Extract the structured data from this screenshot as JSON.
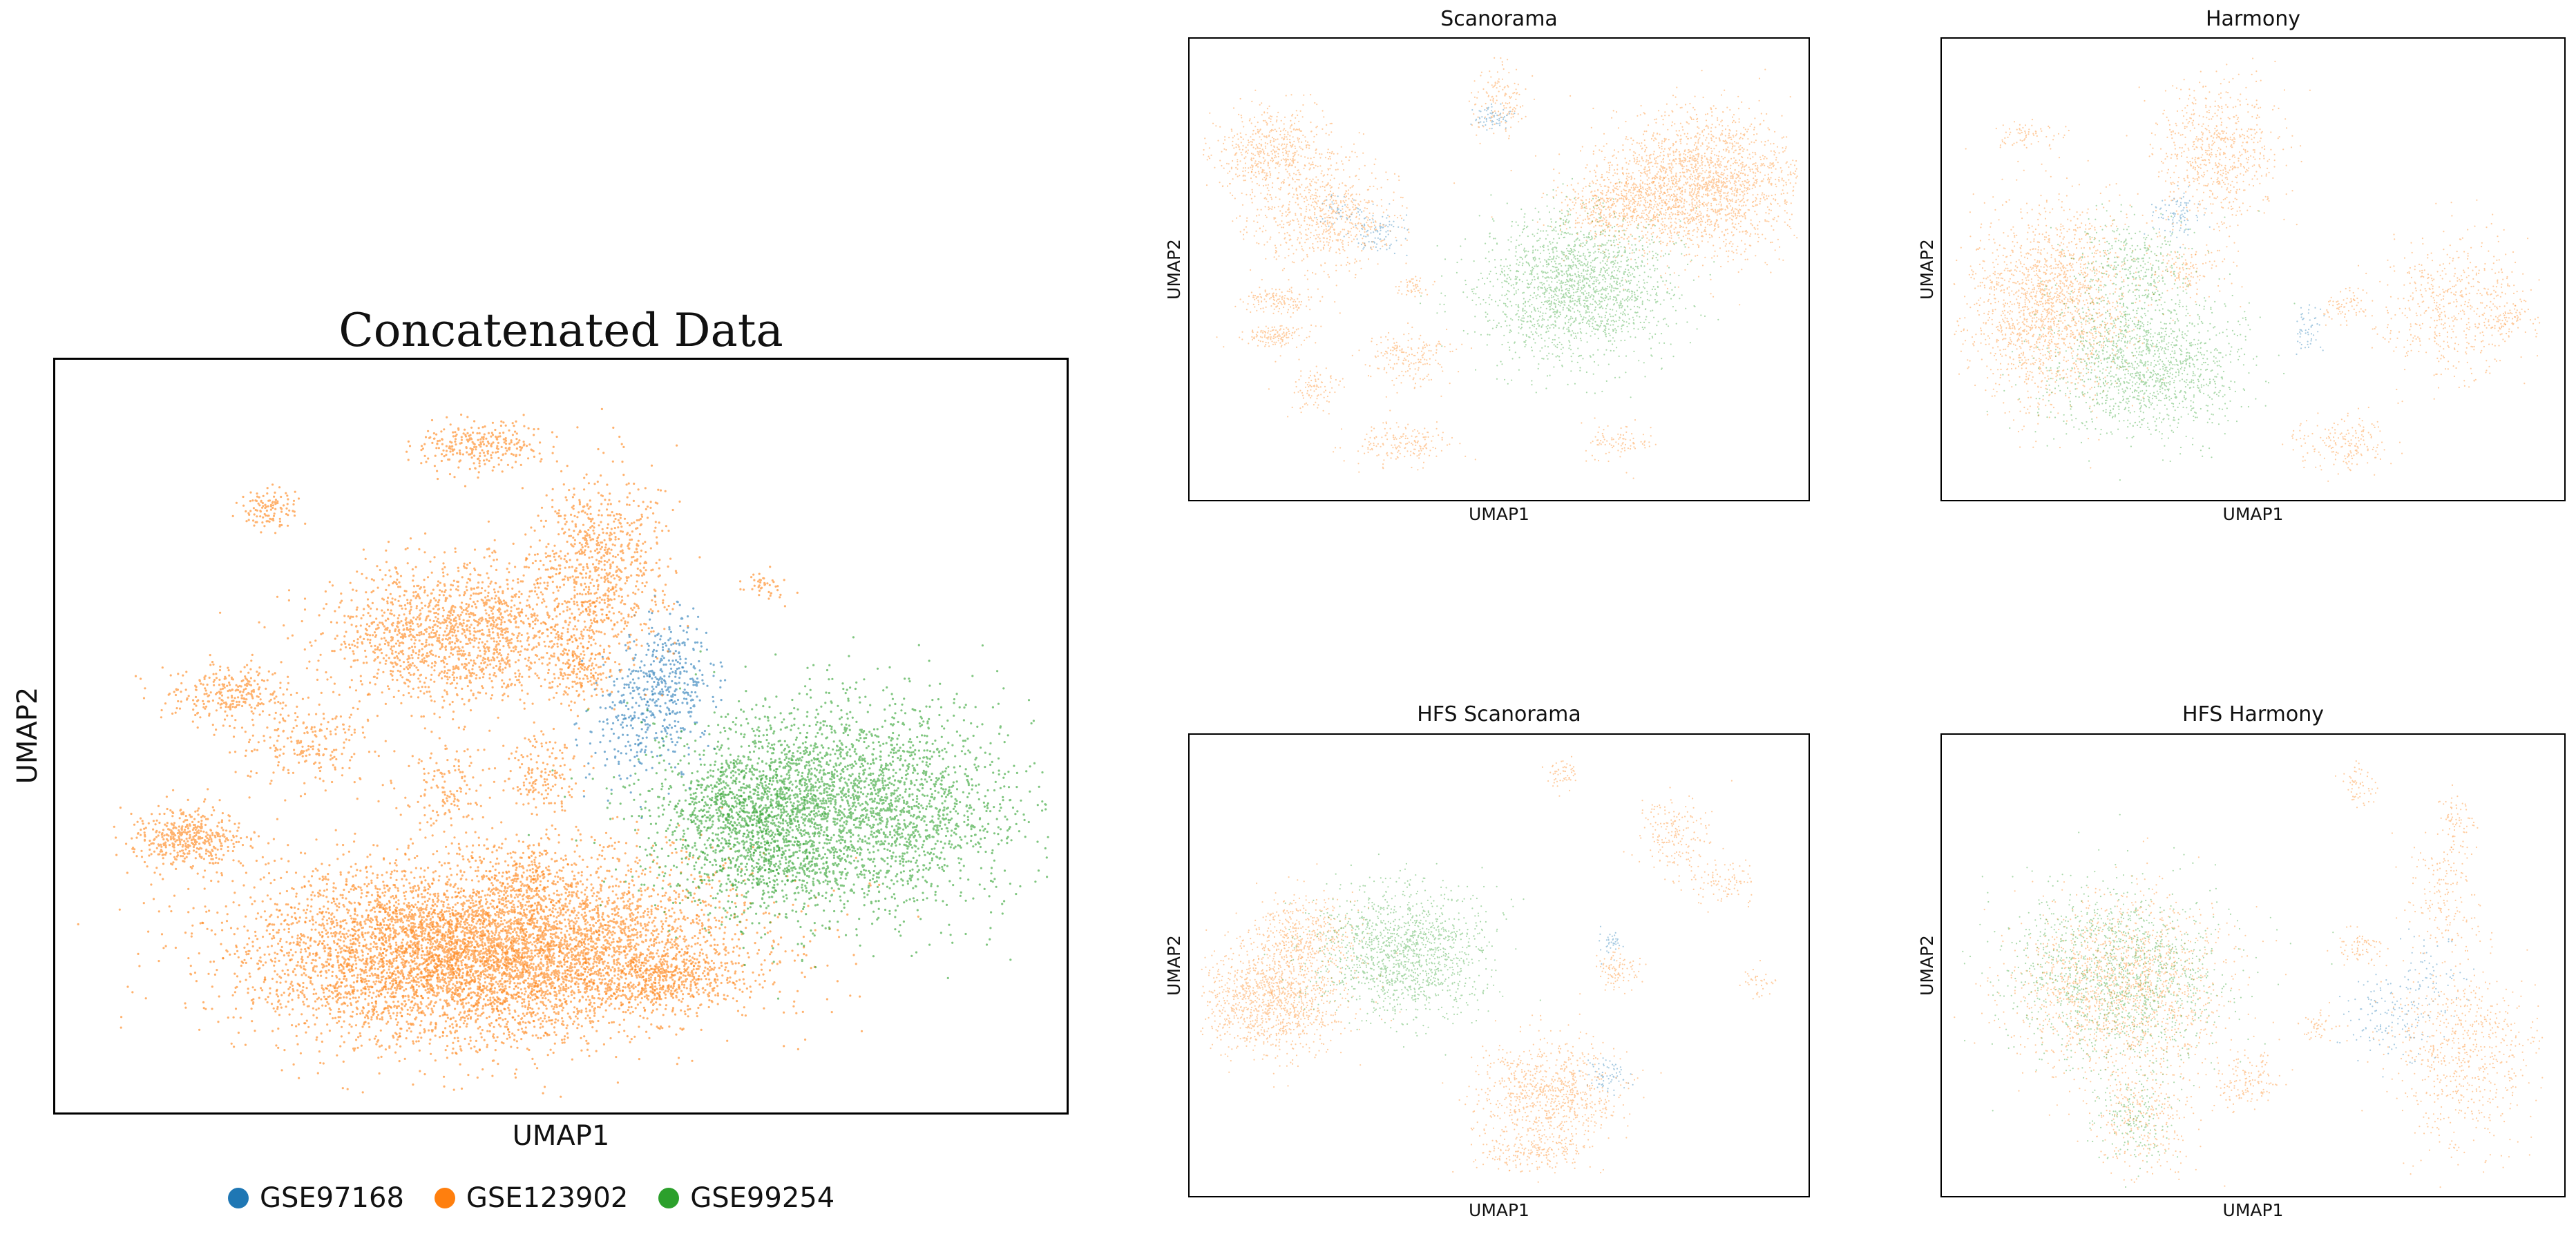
{
  "legend": {
    "entries": [
      {
        "label": "GSE97168",
        "color": "#1f77b4"
      },
      {
        "label": "GSE123902",
        "color": "#ff7f0e"
      },
      {
        "label": "GSE99254",
        "color": "#2ca02c"
      }
    ]
  },
  "chart_data": [
    {
      "type": "scatter",
      "title": "Concatenated Data",
      "xlabel": "UMAP1",
      "ylabel": "UMAP2",
      "grid": false,
      "ticks": false,
      "xlim": [
        0,
        100
      ],
      "ylim": [
        0,
        100
      ],
      "series": [
        {
          "name": "GSE97168",
          "color": "#1f77b4",
          "clusters": [
            {
              "x": 61,
              "y": 57,
              "sx": 2.5,
              "sy": 4.5,
              "n": 700
            },
            {
              "x": 57,
              "y": 52,
              "sx": 2.5,
              "sy": 4.5,
              "n": 300
            }
          ]
        },
        {
          "name": "GSE123902",
          "color": "#ff7f0e",
          "clusters": [
            {
              "x": 45,
              "y": 21,
              "sx": 12,
              "sy": 6,
              "n": 9000
            },
            {
              "x": 36,
              "y": 19,
              "sx": 10,
              "sy": 6,
              "n": 3500
            },
            {
              "x": 61,
              "y": 17,
              "sx": 3.5,
              "sy": 2,
              "n": 700
            },
            {
              "x": 40,
              "y": 64,
              "sx": 7,
              "sy": 5,
              "n": 3000
            },
            {
              "x": 54,
              "y": 74,
              "sx": 3.5,
              "sy": 6,
              "n": 1400
            },
            {
              "x": 12,
              "y": 36,
              "sx": 3,
              "sy": 2,
              "n": 800
            },
            {
              "x": 16,
              "y": 56,
              "sx": 3.5,
              "sy": 2,
              "n": 500
            },
            {
              "x": 24,
              "y": 49,
              "sx": 3.5,
              "sy": 3,
              "n": 400
            },
            {
              "x": 42,
              "y": 90,
              "sx": 3.2,
              "sy": 1.6,
              "n": 500
            },
            {
              "x": 20,
              "y": 81,
              "sx": 1.5,
              "sy": 1.5,
              "n": 200
            },
            {
              "x": 48,
              "y": 45,
              "sx": 2,
              "sy": 3,
              "n": 300
            },
            {
              "x": 38,
              "y": 43,
              "sx": 2,
              "sy": 3,
              "n": 250
            },
            {
              "x": 52,
              "y": 59,
              "sx": 1.5,
              "sy": 2.5,
              "n": 250
            },
            {
              "x": 71,
              "y": 71,
              "sx": 1.2,
              "sy": 1,
              "n": 80
            },
            {
              "x": 46,
              "y": 32,
              "sx": 2,
              "sy": 2,
              "n": 200
            }
          ]
        },
        {
          "name": "GSE99254",
          "color": "#2ca02c",
          "clusters": [
            {
              "x": 78,
              "y": 40,
              "sx": 9,
              "sy": 7,
              "n": 6000
            },
            {
              "x": 69,
              "y": 37,
              "sx": 4,
              "sy": 5,
              "n": 1200
            }
          ]
        }
      ]
    },
    {
      "type": "scatter",
      "title": "Scanorama",
      "xlabel": "UMAP1",
      "ylabel": "UMAP2",
      "grid": false,
      "ticks": false,
      "xlim": [
        0,
        100
      ],
      "ylim": [
        0,
        100
      ],
      "series": [
        {
          "name": "GSE97168",
          "color": "#1f77b4",
          "clusters": [
            {
              "x": 30,
              "y": 58,
              "sx": 2.5,
              "sy": 2.5,
              "n": 200
            },
            {
              "x": 49,
              "y": 84,
              "sx": 1.5,
              "sy": 1.5,
              "n": 150
            },
            {
              "x": 24,
              "y": 63,
              "sx": 2,
              "sy": 2,
              "n": 100
            }
          ]
        },
        {
          "name": "GSE123902",
          "color": "#ff7f0e",
          "clusters": [
            {
              "x": 84,
              "y": 69,
              "sx": 8,
              "sy": 8,
              "n": 4500
            },
            {
              "x": 70,
              "y": 64,
              "sx": 5,
              "sy": 4,
              "n": 1200
            },
            {
              "x": 12,
              "y": 76,
              "sx": 5,
              "sy": 5,
              "n": 1200
            },
            {
              "x": 21,
              "y": 62,
              "sx": 6,
              "sy": 6,
              "n": 1500
            },
            {
              "x": 13,
              "y": 43,
              "sx": 3,
              "sy": 1.5,
              "n": 300
            },
            {
              "x": 13,
              "y": 35,
              "sx": 3,
              "sy": 1.5,
              "n": 300
            },
            {
              "x": 19,
              "y": 23,
              "sx": 2,
              "sy": 2.5,
              "n": 200
            },
            {
              "x": 35,
              "y": 30,
              "sx": 4,
              "sy": 3,
              "n": 400
            },
            {
              "x": 34,
              "y": 11,
              "sx": 4,
              "sy": 2.5,
              "n": 400
            },
            {
              "x": 50,
              "y": 88,
              "sx": 2.5,
              "sy": 4,
              "n": 300
            },
            {
              "x": 70,
              "y": 11,
              "sx": 3,
              "sy": 2,
              "n": 200
            },
            {
              "x": 36,
              "y": 46,
              "sx": 1.5,
              "sy": 1.5,
              "n": 100
            }
          ]
        },
        {
          "name": "GSE99254",
          "color": "#2ca02c",
          "clusters": [
            {
              "x": 63,
              "y": 46,
              "sx": 8,
              "sy": 8,
              "n": 4000
            }
          ]
        }
      ]
    },
    {
      "type": "scatter",
      "title": "Harmony",
      "xlabel": "UMAP1",
      "ylabel": "UMAP2",
      "grid": false,
      "ticks": false,
      "xlim": [
        0,
        100
      ],
      "ylim": [
        0,
        100
      ],
      "series": [
        {
          "name": "GSE97168",
          "color": "#1f77b4",
          "clusters": [
            {
              "x": 37,
              "y": 62,
              "sx": 2,
              "sy": 2.5,
              "n": 200
            },
            {
              "x": 59,
              "y": 36,
              "sx": 1,
              "sy": 3,
              "n": 120
            }
          ]
        },
        {
          "name": "GSE123902",
          "color": "#ff7f0e",
          "clusters": [
            {
              "x": 16,
              "y": 42,
              "sx": 7,
              "sy": 11,
              "n": 4000
            },
            {
              "x": 44,
              "y": 76,
              "sx": 5,
              "sy": 8,
              "n": 1500
            },
            {
              "x": 84,
              "y": 42,
              "sx": 6,
              "sy": 8,
              "n": 1200
            },
            {
              "x": 65,
              "y": 11,
              "sx": 4,
              "sy": 3,
              "n": 400
            },
            {
              "x": 12,
              "y": 80,
              "sx": 3,
              "sy": 1.5,
              "n": 150
            },
            {
              "x": 93,
              "y": 39,
              "sx": 2,
              "sy": 2,
              "n": 150
            },
            {
              "x": 39,
              "y": 50,
              "sx": 3,
              "sy": 3,
              "n": 300
            },
            {
              "x": 65,
              "y": 42,
              "sx": 2,
              "sy": 2,
              "n": 150
            }
          ]
        },
        {
          "name": "GSE99254",
          "color": "#2ca02c",
          "clusters": [
            {
              "x": 32,
              "y": 28,
              "sx": 8,
              "sy": 8,
              "n": 3000
            },
            {
              "x": 30,
              "y": 50,
              "sx": 5,
              "sy": 6,
              "n": 800
            }
          ]
        }
      ]
    },
    {
      "type": "scatter",
      "title": "HFS Scanorama",
      "xlabel": "UMAP1",
      "ylabel": "UMAP2",
      "grid": false,
      "ticks": false,
      "xlim": [
        0,
        100
      ],
      "ylim": [
        0,
        100
      ],
      "series": [
        {
          "name": "GSE97168",
          "color": "#1f77b4",
          "clusters": [
            {
              "x": 68,
              "y": 25,
              "sx": 2,
              "sy": 2,
              "n": 150
            },
            {
              "x": 69,
              "y": 55,
              "sx": 1,
              "sy": 1.5,
              "n": 80
            }
          ]
        },
        {
          "name": "GSE123902",
          "color": "#ff7f0e",
          "clusters": [
            {
              "x": 12,
              "y": 42,
              "sx": 6,
              "sy": 6,
              "n": 2500
            },
            {
              "x": 17,
              "y": 56,
              "sx": 5,
              "sy": 5,
              "n": 1000
            },
            {
              "x": 58,
              "y": 21,
              "sx": 6,
              "sy": 6,
              "n": 1800
            },
            {
              "x": 55,
              "y": 8,
              "sx": 5,
              "sy": 2,
              "n": 400
            },
            {
              "x": 79,
              "y": 80,
              "sx": 3,
              "sy": 4,
              "n": 400
            },
            {
              "x": 87,
              "y": 69,
              "sx": 3,
              "sy": 3,
              "n": 200
            },
            {
              "x": 61,
              "y": 93,
              "sx": 1.5,
              "sy": 1.5,
              "n": 120
            },
            {
              "x": 70,
              "y": 49,
              "sx": 2,
              "sy": 2,
              "n": 200
            },
            {
              "x": 93,
              "y": 46,
              "sx": 1.5,
              "sy": 1.5,
              "n": 80
            }
          ]
        },
        {
          "name": "GSE99254",
          "color": "#2ca02c",
          "clusters": [
            {
              "x": 34,
              "y": 53,
              "sx": 7,
              "sy": 7,
              "n": 3000
            }
          ]
        }
      ]
    },
    {
      "type": "scatter",
      "title": "HFS Harmony",
      "xlabel": "UMAP1",
      "ylabel": "UMAP2",
      "grid": false,
      "ticks": false,
      "xlim": [
        0,
        100
      ],
      "ylim": [
        0,
        100
      ],
      "series": [
        {
          "name": "GSE97168",
          "color": "#1f77b4",
          "clusters": [
            {
              "x": 73,
              "y": 38,
              "sx": 4,
              "sy": 5,
              "n": 300
            },
            {
              "x": 80,
              "y": 48,
              "sx": 3,
              "sy": 4,
              "n": 150
            }
          ]
        },
        {
          "name": "GSE123902",
          "color": "#ff7f0e",
          "clusters": [
            {
              "x": 28,
              "y": 45,
              "sx": 9,
              "sy": 10,
              "n": 3500
            },
            {
              "x": 31,
              "y": 15,
              "sx": 4,
              "sy": 6,
              "n": 600
            },
            {
              "x": 85,
              "y": 30,
              "sx": 6,
              "sy": 10,
              "n": 1500
            },
            {
              "x": 49,
              "y": 24,
              "sx": 2.5,
              "sy": 3,
              "n": 300
            },
            {
              "x": 82,
              "y": 65,
              "sx": 3,
              "sy": 8,
              "n": 400
            },
            {
              "x": 68,
              "y": 54,
              "sx": 2,
              "sy": 2,
              "n": 150
            },
            {
              "x": 84,
              "y": 82,
              "sx": 1.5,
              "sy": 3,
              "n": 150
            },
            {
              "x": 68,
              "y": 90,
              "sx": 1.5,
              "sy": 2.5,
              "n": 120
            },
            {
              "x": 61,
              "y": 36,
              "sx": 2,
              "sy": 2,
              "n": 100
            }
          ]
        },
        {
          "name": "GSE99254",
          "color": "#2ca02c",
          "clusters": [
            {
              "x": 27,
              "y": 48,
              "sx": 9,
              "sy": 10,
              "n": 3000
            },
            {
              "x": 30,
              "y": 15,
              "sx": 3,
              "sy": 5,
              "n": 400
            }
          ]
        }
      ]
    }
  ]
}
